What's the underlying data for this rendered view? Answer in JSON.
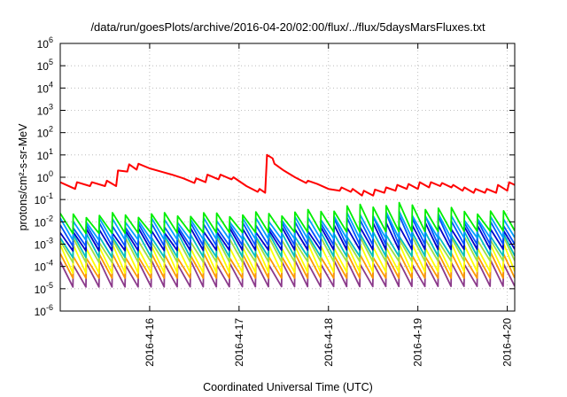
{
  "chart_data": {
    "type": "line",
    "title": "/data/run/goesPlots/archive/2016-04-20/02:00/flux/../flux/5daysMarsFluxes.txt",
    "xlabel": "Coordinated Universal Time (UTC)",
    "ylabel": "protons/cm²-s-sr-MeV",
    "y_scale": "log",
    "ylim": [
      1e-06,
      1000000.0
    ],
    "xlim": [
      "2016-04-15 00:00",
      "2016-04-20 02:00"
    ],
    "grid": true,
    "legend": "none",
    "y_ticks": [
      {
        "base": "10",
        "exp": "-6",
        "value": 1e-06
      },
      {
        "base": "10",
        "exp": "-5",
        "value": 1e-05
      },
      {
        "base": "10",
        "exp": "-4",
        "value": 0.0001
      },
      {
        "base": "10",
        "exp": "-3",
        "value": 0.001
      },
      {
        "base": "10",
        "exp": "-2",
        "value": 0.01
      },
      {
        "base": "10",
        "exp": "-1",
        "value": 0.1
      },
      {
        "base": "10",
        "exp": "0",
        "value": 1
      },
      {
        "base": "10",
        "exp": "1",
        "value": 10
      },
      {
        "base": "10",
        "exp": "2",
        "value": 100
      },
      {
        "base": "10",
        "exp": "3",
        "value": 1000
      },
      {
        "base": "10",
        "exp": "4",
        "value": 10000
      },
      {
        "base": "10",
        "exp": "5",
        "value": 100000
      },
      {
        "base": "10",
        "exp": "6",
        "value": 1000000
      }
    ],
    "x_ticks": [
      "2016-4-16",
      "2016-4-17",
      "2016-4-18",
      "2016-4-19",
      "2016-4-20"
    ],
    "series": [
      {
        "color": "#ff0000",
        "values": [
          [
            "2016-04-15 00:00",
            0.6
          ],
          [
            "2016-04-15 04:00",
            0.3
          ],
          [
            "2016-04-15 04:30",
            0.6
          ],
          [
            "2016-04-15 08:00",
            0.4
          ],
          [
            "2016-04-15 08:30",
            0.6
          ],
          [
            "2016-04-15 12:00",
            0.4
          ],
          [
            "2016-04-15 12:30",
            0.7
          ],
          [
            "2016-04-15 15:00",
            0.4
          ],
          [
            "2016-04-15 15:30",
            2.0
          ],
          [
            "2016-04-15 18:00",
            1.8
          ],
          [
            "2016-04-15 18:30",
            3.8
          ],
          [
            "2016-04-15 20:30",
            2.2
          ],
          [
            "2016-04-15 21:00",
            4.0
          ],
          [
            "2016-04-16 00:00",
            2.5
          ],
          [
            "2016-04-16 03:00",
            1.8
          ],
          [
            "2016-04-16 06:00",
            1.3
          ],
          [
            "2016-04-16 09:00",
            0.9
          ],
          [
            "2016-04-16 12:00",
            0.55
          ],
          [
            "2016-04-16 12:30",
            0.9
          ],
          [
            "2016-04-16 15:00",
            0.6
          ],
          [
            "2016-04-16 15:30",
            1.3
          ],
          [
            "2016-04-16 18:30",
            0.8
          ],
          [
            "2016-04-16 19:00",
            1.3
          ],
          [
            "2016-04-16 22:00",
            0.8
          ],
          [
            "2016-04-16 22:30",
            1.0
          ],
          [
            "2016-04-17 02:00",
            0.4
          ],
          [
            "2016-04-17 05:00",
            0.22
          ],
          [
            "2016-04-17 05:30",
            0.3
          ],
          [
            "2016-04-17 07:00",
            0.2
          ],
          [
            "2016-04-17 07:30",
            10
          ],
          [
            "2016-04-17 09:00",
            7.0
          ],
          [
            "2016-04-17 09:30",
            4.0
          ],
          [
            "2016-04-17 12:00",
            2.0
          ],
          [
            "2016-04-17 15:00",
            1.0
          ],
          [
            "2016-04-17 18:00",
            0.55
          ],
          [
            "2016-04-17 18:30",
            0.7
          ],
          [
            "2016-04-17 21:00",
            0.5
          ],
          [
            "2016-04-18 00:00",
            0.3
          ],
          [
            "2016-04-18 03:00",
            0.25
          ],
          [
            "2016-04-18 03:30",
            0.35
          ],
          [
            "2016-04-18 06:00",
            0.22
          ],
          [
            "2016-04-18 06:30",
            0.3
          ],
          [
            "2016-04-18 09:00",
            0.15
          ],
          [
            "2016-04-18 09:30",
            0.25
          ],
          [
            "2016-04-18 12:00",
            0.15
          ],
          [
            "2016-04-18 12:30",
            0.28
          ],
          [
            "2016-04-18 15:00",
            0.2
          ],
          [
            "2016-04-18 15:30",
            0.35
          ],
          [
            "2016-04-18 18:00",
            0.25
          ],
          [
            "2016-04-18 18:30",
            0.45
          ],
          [
            "2016-04-18 21:00",
            0.3
          ],
          [
            "2016-04-18 21:30",
            0.5
          ],
          [
            "2016-04-19 00:00",
            0.3
          ],
          [
            "2016-04-19 00:30",
            0.6
          ],
          [
            "2016-04-19 03:00",
            0.35
          ],
          [
            "2016-04-19 03:30",
            0.6
          ],
          [
            "2016-04-19 06:00",
            0.4
          ],
          [
            "2016-04-19 06:30",
            0.55
          ],
          [
            "2016-04-19 09:00",
            0.35
          ],
          [
            "2016-04-19 09:30",
            0.45
          ],
          [
            "2016-04-19 12:00",
            0.25
          ],
          [
            "2016-04-19 12:30",
            0.35
          ],
          [
            "2016-04-19 15:00",
            0.2
          ],
          [
            "2016-04-19 15:30",
            0.3
          ],
          [
            "2016-04-19 18:00",
            0.2
          ],
          [
            "2016-04-19 18:30",
            0.3
          ],
          [
            "2016-04-19 21:00",
            0.2
          ],
          [
            "2016-04-19 21:30",
            0.45
          ],
          [
            "2016-04-20 00:00",
            0.25
          ],
          [
            "2016-04-20 00:30",
            0.6
          ],
          [
            "2016-04-20 02:00",
            0.45
          ]
        ]
      },
      {
        "color": "#00ee00",
        "sawtooth": {
          "period_hours": 3.5,
          "low_start": 0.003,
          "high_start": 0.02,
          "low_end": 0.004,
          "high_end": 0.025,
          "bump_center": "2016-04-18 16:00",
          "bump_peak": 0.06
        }
      },
      {
        "color": "#00a0ff",
        "sawtooth": {
          "period_hours": 3.5,
          "low_start": 0.0015,
          "high_start": 0.012,
          "low_end": 0.002,
          "high_end": 0.013,
          "bump_center": "2016-04-18 16:00",
          "bump_peak": 0.025
        }
      },
      {
        "color": "#0050ff",
        "sawtooth": {
          "period_hours": 3.5,
          "low_start": 0.0008,
          "high_start": 0.007,
          "low_end": 0.001,
          "high_end": 0.008,
          "bump_center": "2016-04-18 18:00",
          "bump_peak": 0.02
        }
      },
      {
        "color": "#0000c8",
        "sawtooth": {
          "period_hours": 3.5,
          "low_start": 0.0005,
          "high_start": 0.004,
          "low_end": 0.0006,
          "high_end": 0.005,
          "bump_center": "2016-04-18 18:00",
          "bump_peak": 0.008
        }
      },
      {
        "color": "#00bfbf",
        "sawtooth": {
          "period_hours": 3.5,
          "low_start": 0.00025,
          "high_start": 0.0025,
          "low_end": 0.0003,
          "high_end": 0.003
        }
      },
      {
        "color": "#a0e040",
        "sawtooth": {
          "period_hours": 3.5,
          "low_start": 0.00015,
          "high_start": 0.0015,
          "low_end": 0.00018,
          "high_end": 0.0018
        }
      },
      {
        "color": "#ffff00",
        "sawtooth": {
          "period_hours": 3.5,
          "low_start": 5e-05,
          "high_start": 0.0008,
          "low_end": 6e-05,
          "high_end": 0.0009
        }
      },
      {
        "color": "#ff9900",
        "sawtooth": {
          "period_hours": 3.5,
          "low_start": 3e-05,
          "high_start": 0.0003,
          "low_end": 3e-05,
          "high_end": 0.00035
        }
      },
      {
        "color": "#8b3a8b",
        "sawtooth": {
          "period_hours": 3.5,
          "low_start": 1.2e-05,
          "high_start": 0.00015,
          "low_end": 1.3e-05,
          "high_end": 0.00016
        }
      }
    ]
  }
}
